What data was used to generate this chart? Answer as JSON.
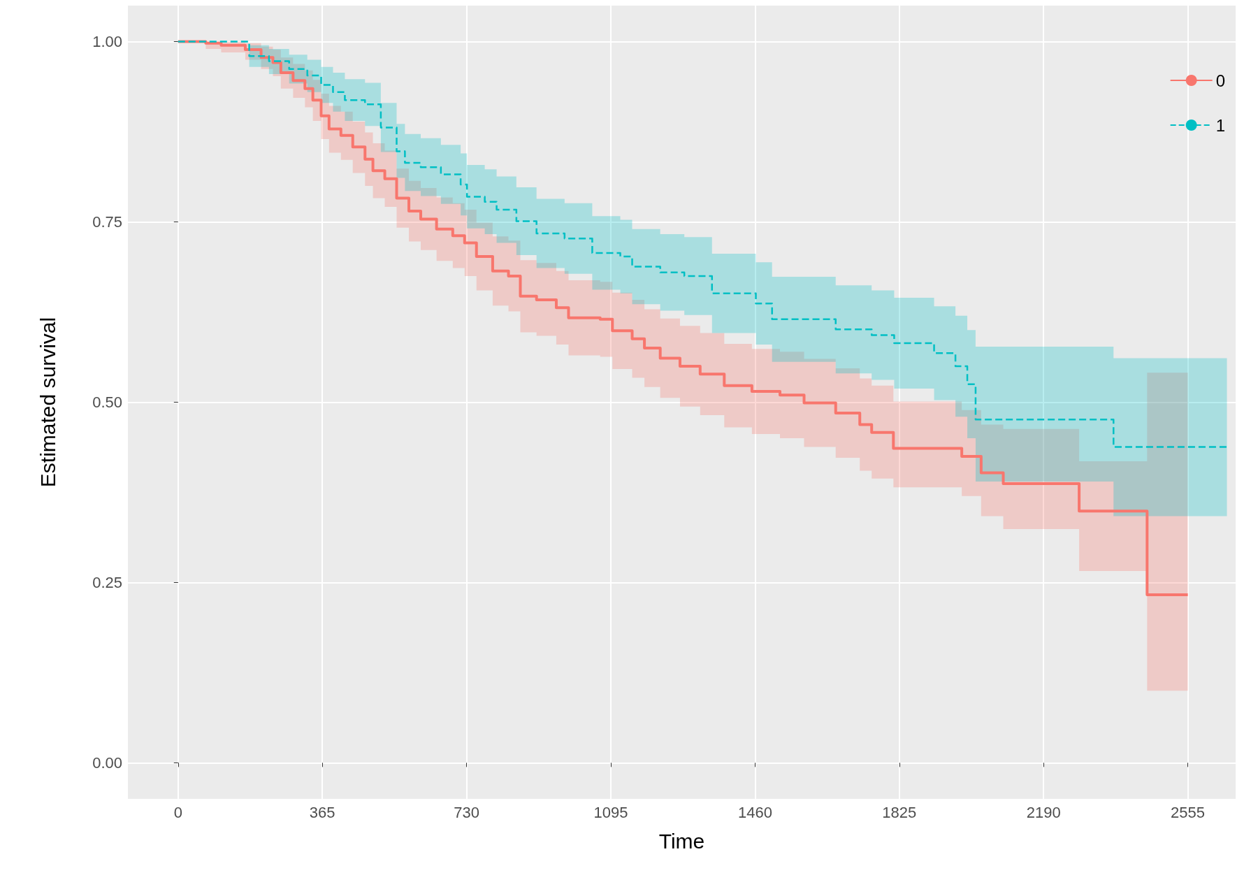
{
  "chart_data": {
    "type": "step",
    "xlabel": "Time",
    "ylabel": "Estimated survival",
    "xlim": [
      -127,
      2676
    ],
    "ylim": [
      -0.05,
      1.05
    ],
    "xticks": [
      0,
      365,
      730,
      1095,
      1460,
      1825,
      2190,
      2555
    ],
    "yticks": [
      {
        "value": 0,
        "label": "0.00"
      },
      {
        "value": 0.25,
        "label": "0.25"
      },
      {
        "value": 0.5,
        "label": "0.50"
      },
      {
        "value": 0.75,
        "label": "0.75"
      },
      {
        "value": 1,
        "label": "1.00"
      }
    ],
    "grid": true,
    "legend": "top right",
    "series": [
      {
        "name": "0",
        "color": "#f8766d",
        "line_style": "solid",
        "x": [
          0,
          70,
          109,
          170,
          210,
          240,
          260,
          291,
          321,
          341,
          362,
          382,
          412,
          442,
          473,
          493,
          523,
          553,
          584,
          614,
          654,
          695,
          725,
          755,
          796,
          836,
          866,
          907,
          957,
          988,
          1068,
          1099,
          1149,
          1180,
          1220,
          1270,
          1321,
          1382,
          1452,
          1523,
          1584,
          1664,
          1725,
          1755,
          1810,
          1983,
          2032,
          2088,
          2280,
          2452,
          2555
        ],
        "values": [
          1,
          0.998,
          0.995,
          0.989,
          0.978,
          0.971,
          0.957,
          0.946,
          0.935,
          0.919,
          0.897,
          0.879,
          0.87,
          0.854,
          0.837,
          0.821,
          0.81,
          0.783,
          0.765,
          0.754,
          0.74,
          0.731,
          0.721,
          0.702,
          0.682,
          0.675,
          0.647,
          0.642,
          0.631,
          0.617,
          0.615,
          0.599,
          0.588,
          0.575,
          0.561,
          0.55,
          0.539,
          0.523,
          0.515,
          0.51,
          0.499,
          0.485,
          0.469,
          0.458,
          0.436,
          0.425,
          0.402,
          0.387,
          0.349,
          0.233,
          0.233
        ],
        "lower": [
          1,
          0.99,
          0.985,
          0.975,
          0.962,
          0.952,
          0.935,
          0.922,
          0.909,
          0.89,
          0.865,
          0.846,
          0.836,
          0.818,
          0.8,
          0.783,
          0.771,
          0.742,
          0.723,
          0.711,
          0.696,
          0.686,
          0.675,
          0.655,
          0.634,
          0.626,
          0.597,
          0.592,
          0.58,
          0.565,
          0.563,
          0.546,
          0.534,
          0.521,
          0.506,
          0.494,
          0.482,
          0.465,
          0.456,
          0.45,
          0.438,
          0.423,
          0.405,
          0.394,
          0.382,
          0.37,
          0.342,
          0.324,
          0.266,
          0.1,
          0.1
        ],
        "upper": [
          1,
          1,
          1,
          0.998,
          0.993,
          0.989,
          0.978,
          0.969,
          0.96,
          0.947,
          0.928,
          0.911,
          0.903,
          0.889,
          0.874,
          0.859,
          0.849,
          0.824,
          0.807,
          0.797,
          0.784,
          0.776,
          0.767,
          0.749,
          0.73,
          0.724,
          0.697,
          0.693,
          0.682,
          0.669,
          0.667,
          0.652,
          0.642,
          0.629,
          0.616,
          0.606,
          0.596,
          0.581,
          0.574,
          0.57,
          0.56,
          0.547,
          0.533,
          0.523,
          0.501,
          0.489,
          0.469,
          0.463,
          0.418,
          0.541,
          0.541
        ]
      },
      {
        "name": "1",
        "color": "#00bfc4",
        "line_style": "dashed",
        "x": [
          0,
          170,
          180,
          230,
          281,
          327,
          362,
          392,
          422,
          473,
          513,
          553,
          574,
          614,
          665,
          715,
          731,
          776,
          806,
          856,
          907,
          978,
          1048,
          1119,
          1149,
          1220,
          1281,
          1351,
          1462,
          1503,
          1664,
          1755,
          1812,
          1913,
          1967,
          1997,
          2018,
          2367,
          2654
        ],
        "values": [
          1,
          1,
          0.98,
          0.973,
          0.962,
          0.953,
          0.94,
          0.93,
          0.919,
          0.913,
          0.881,
          0.848,
          0.832,
          0.826,
          0.816,
          0.802,
          0.785,
          0.778,
          0.767,
          0.751,
          0.734,
          0.727,
          0.707,
          0.702,
          0.688,
          0.68,
          0.675,
          0.651,
          0.637,
          0.615,
          0.601,
          0.593,
          0.582,
          0.568,
          0.55,
          0.525,
          0.476,
          0.438,
          0.438
        ],
        "lower": [
          1,
          1,
          0.965,
          0.955,
          0.942,
          0.93,
          0.915,
          0.903,
          0.89,
          0.883,
          0.847,
          0.811,
          0.793,
          0.786,
          0.775,
          0.759,
          0.741,
          0.733,
          0.721,
          0.704,
          0.686,
          0.678,
          0.656,
          0.651,
          0.636,
          0.627,
          0.621,
          0.596,
          0.58,
          0.556,
          0.54,
          0.531,
          0.519,
          0.503,
          0.48,
          0.45,
          0.39,
          0.342,
          0.342
        ],
        "upper": [
          1,
          1,
          0.995,
          0.99,
          0.982,
          0.975,
          0.965,
          0.957,
          0.948,
          0.943,
          0.915,
          0.886,
          0.872,
          0.866,
          0.857,
          0.845,
          0.829,
          0.823,
          0.813,
          0.798,
          0.782,
          0.776,
          0.758,
          0.753,
          0.74,
          0.733,
          0.729,
          0.706,
          0.694,
          0.674,
          0.662,
          0.655,
          0.645,
          0.633,
          0.62,
          0.6,
          0.577,
          0.561,
          0.561
        ]
      }
    ]
  }
}
